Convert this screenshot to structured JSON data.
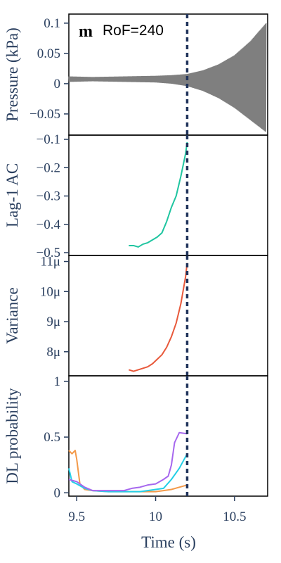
{
  "chart_data": {
    "type": "line",
    "panel_letter": "m",
    "panel_tag": "RoF=240",
    "xlabel": "Time (s)",
    "xlim": [
      9.45,
      10.71
    ],
    "xticks": [
      {
        "value": 9.5,
        "label": "9.5"
      },
      {
        "value": 10.0,
        "label": "10"
      },
      {
        "value": 10.5,
        "label": "10.5"
      }
    ],
    "transition_time": 10.2,
    "colors": {
      "pressure": "#7f7f7f",
      "lag1": "#1fc5a0",
      "variance": "#e8593b",
      "dl1": "#f39a4a",
      "dl2": "#24cfe6",
      "dl3": "#a667ee",
      "transition": "#22355c",
      "text": "#2a3f5f"
    },
    "panels": [
      {
        "id": "pressure",
        "ylabel": "Pressure (kPa)",
        "ylim": [
          -0.085,
          0.115
        ],
        "yticks": [
          {
            "value": 0.1,
            "label": "0.1"
          },
          {
            "value": 0.05,
            "label": "0.05"
          },
          {
            "value": 0,
            "label": "0"
          },
          {
            "value": -0.05,
            "label": "−0.05"
          }
        ],
        "envelope": [
          {
            "t": 9.45,
            "hi": 0.012,
            "lo": 0.003
          },
          {
            "t": 9.6,
            "hi": 0.011,
            "lo": 0.004
          },
          {
            "t": 9.8,
            "hi": 0.012,
            "lo": 0.003
          },
          {
            "t": 10.0,
            "hi": 0.013,
            "lo": 0.002
          },
          {
            "t": 10.1,
            "hi": 0.014,
            "lo": 0.0
          },
          {
            "t": 10.2,
            "hi": 0.016,
            "lo": -0.004
          },
          {
            "t": 10.3,
            "hi": 0.022,
            "lo": -0.012
          },
          {
            "t": 10.4,
            "hi": 0.032,
            "lo": -0.024
          },
          {
            "t": 10.5,
            "hi": 0.047,
            "lo": -0.04
          },
          {
            "t": 10.6,
            "hi": 0.07,
            "lo": -0.06
          },
          {
            "t": 10.7,
            "hi": 0.1,
            "lo": -0.08
          }
        ]
      },
      {
        "id": "lag1",
        "ylabel": "Lag-1 AC",
        "ylim": [
          -0.5,
          -0.1
        ],
        "yticks": [
          {
            "value": -0.1,
            "label": "−0.1"
          },
          {
            "value": -0.2,
            "label": "−0.2"
          },
          {
            "value": -0.3,
            "label": "−0.3"
          },
          {
            "value": -0.4,
            "label": "−0.4"
          },
          {
            "value": -0.5,
            "label": "−0.5"
          }
        ],
        "series": [
          {
            "key": "lag1",
            "x": [
              9.83,
              9.86,
              9.89,
              9.92,
              9.95,
              9.98,
              10.01,
              10.04,
              10.07,
              10.1,
              10.13,
              10.16,
              10.19,
              10.2
            ],
            "y": [
              -0.475,
              -0.475,
              -0.48,
              -0.47,
              -0.465,
              -0.455,
              -0.445,
              -0.43,
              -0.39,
              -0.34,
              -0.3,
              -0.23,
              -0.15,
              -0.11
            ]
          }
        ]
      },
      {
        "id": "variance",
        "ylabel": "Variance",
        "ylim": [
          7.2,
          11.2
        ],
        "yticks": [
          {
            "value": 11,
            "label": "11μ"
          },
          {
            "value": 10,
            "label": "10μ"
          },
          {
            "value": 9,
            "label": "9μ"
          },
          {
            "value": 8,
            "label": "8μ"
          }
        ],
        "series": [
          {
            "key": "variance",
            "x": [
              9.83,
              9.86,
              9.89,
              9.92,
              9.95,
              9.98,
              10.01,
              10.04,
              10.07,
              10.1,
              10.13,
              10.16,
              10.19,
              10.2
            ],
            "y": [
              7.4,
              7.35,
              7.4,
              7.45,
              7.5,
              7.6,
              7.75,
              7.9,
              8.15,
              8.5,
              8.95,
              9.6,
              10.5,
              10.95
            ]
          }
        ]
      },
      {
        "id": "dl",
        "ylabel": "DL probability",
        "ylim": [
          -0.03,
          1.05
        ],
        "yticks": [
          {
            "value": 1,
            "label": "1"
          },
          {
            "value": 0.5,
            "label": "0.5"
          },
          {
            "value": 0,
            "label": "0"
          }
        ],
        "series": [
          {
            "key": "dl1",
            "x": [
              9.45,
              9.47,
              9.49,
              9.5,
              9.52,
              9.55,
              9.6,
              9.7,
              9.8,
              9.9,
              10.0,
              10.05,
              10.1,
              10.15,
              10.2
            ],
            "y": [
              0.38,
              0.35,
              0.38,
              0.3,
              0.08,
              0.03,
              0.02,
              0.01,
              0.01,
              0.01,
              0.01,
              0.02,
              0.03,
              0.05,
              0.07
            ]
          },
          {
            "key": "dl2",
            "x": [
              9.45,
              9.47,
              9.5,
              9.55,
              9.6,
              9.7,
              9.8,
              9.9,
              9.95,
              10.0,
              10.05,
              10.1,
              10.15,
              10.2
            ],
            "y": [
              0.22,
              0.1,
              0.08,
              0.04,
              0.02,
              0.01,
              0.01,
              0.01,
              0.02,
              0.03,
              0.04,
              0.12,
              0.22,
              0.35
            ]
          },
          {
            "key": "dl3",
            "x": [
              9.45,
              9.5,
              9.55,
              9.6,
              9.7,
              9.8,
              9.85,
              9.9,
              9.95,
              10.0,
              10.05,
              10.08,
              10.1,
              10.12,
              10.15,
              10.2
            ],
            "y": [
              0.12,
              0.1,
              0.05,
              0.02,
              0.02,
              0.02,
              0.04,
              0.05,
              0.07,
              0.08,
              0.12,
              0.15,
              0.25,
              0.45,
              0.54,
              0.53
            ]
          }
        ]
      }
    ]
  }
}
